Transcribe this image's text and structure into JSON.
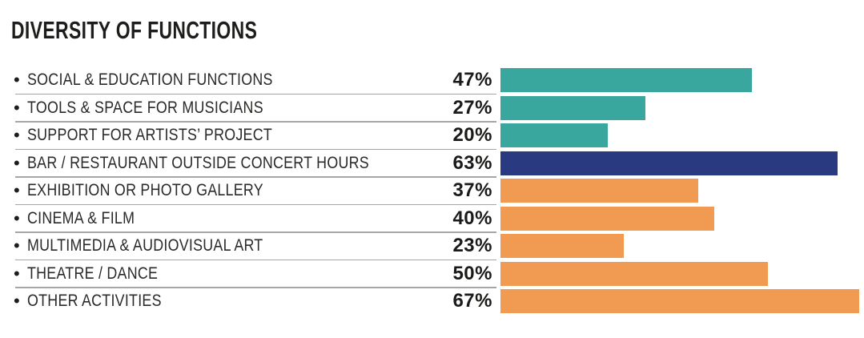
{
  "title": "DIVERSITY OF FUNCTIONS",
  "ui": {
    "bullet": "•"
  },
  "chart_data": {
    "type": "bar",
    "orientation": "horizontal",
    "title": "DIVERSITY OF FUNCTIONS",
    "unit": "%",
    "scale_max": 67,
    "grid": false,
    "legend": false,
    "colors": {
      "teal": "#3aa79f",
      "navy": "#2a3a81",
      "orange": "#f09a52"
    },
    "rows": [
      {
        "label": "SOCIAL & EDUCATION FUNCTIONS",
        "value": 47,
        "display": "47%",
        "color": "teal"
      },
      {
        "label": "TOOLS & SPACE FOR MUSICIANS",
        "value": 27,
        "display": "27%",
        "color": "teal"
      },
      {
        "label": "SUPPORT FOR ARTISTS’ PROJECT",
        "value": 20,
        "display": "20%",
        "color": "teal"
      },
      {
        "label": "BAR / RESTAURANT OUTSIDE CONCERT HOURS",
        "value": 63,
        "display": "63%",
        "color": "navy"
      },
      {
        "label": "EXHIBITION OR PHOTO GALLERY",
        "value": 37,
        "display": "37%",
        "color": "orange"
      },
      {
        "label": "CINEMA & FILM",
        "value": 40,
        "display": "40%",
        "color": "orange"
      },
      {
        "label": "MULTIMEDIA & AUDIOVISUAL ART",
        "value": 23,
        "display": "23%",
        "color": "orange"
      },
      {
        "label": "THEATRE / DANCE",
        "value": 50,
        "display": "50%",
        "color": "orange"
      },
      {
        "label": "OTHER ACTIVITIES",
        "value": 67,
        "display": "67%",
        "color": "orange"
      }
    ]
  }
}
